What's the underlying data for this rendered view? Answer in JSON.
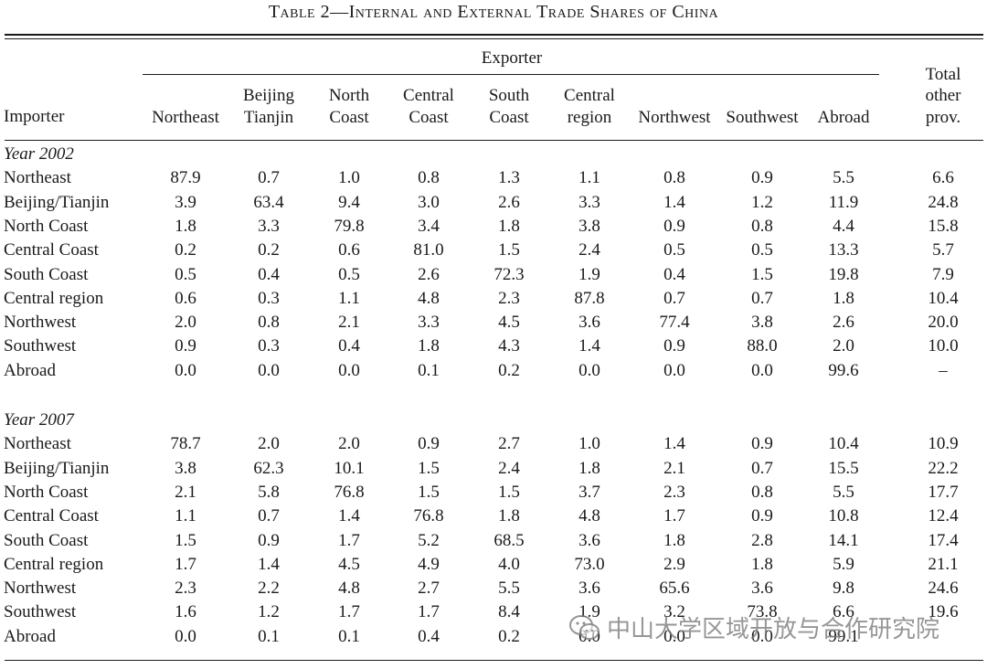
{
  "title": "Table 2—Internal and External Trade Shares of China",
  "header": {
    "importer": "Importer",
    "exporter": "Exporter",
    "columns": [
      [
        "Northeast"
      ],
      [
        "Beijing",
        "Tianjin"
      ],
      [
        "North",
        "Coast"
      ],
      [
        "Central",
        "Coast"
      ],
      [
        "South",
        "Coast"
      ],
      [
        "Central",
        "region"
      ],
      [
        "Northwest"
      ],
      [
        "Southwest"
      ],
      [
        "Abroad"
      ],
      [
        "Total",
        "other",
        "prov."
      ]
    ]
  },
  "panels": [
    {
      "label": "Year 2002",
      "rows": [
        {
          "name": "Northeast",
          "values": [
            "87.9",
            "0.7",
            "1.0",
            "0.8",
            "1.3",
            "1.1",
            "0.8",
            "0.9",
            "5.5",
            "6.6"
          ]
        },
        {
          "name": "Beijing/Tianjin",
          "values": [
            "3.9",
            "63.4",
            "9.4",
            "3.0",
            "2.6",
            "3.3",
            "1.4",
            "1.2",
            "11.9",
            "24.8"
          ]
        },
        {
          "name": "North Coast",
          "values": [
            "1.8",
            "3.3",
            "79.8",
            "3.4",
            "1.8",
            "3.8",
            "0.9",
            "0.8",
            "4.4",
            "15.8"
          ]
        },
        {
          "name": "Central Coast",
          "values": [
            "0.2",
            "0.2",
            "0.6",
            "81.0",
            "1.5",
            "2.4",
            "0.5",
            "0.5",
            "13.3",
            "5.7"
          ]
        },
        {
          "name": "South Coast",
          "values": [
            "0.5",
            "0.4",
            "0.5",
            "2.6",
            "72.3",
            "1.9",
            "0.4",
            "1.5",
            "19.8",
            "7.9"
          ]
        },
        {
          "name": "Central region",
          "values": [
            "0.6",
            "0.3",
            "1.1",
            "4.8",
            "2.3",
            "87.8",
            "0.7",
            "0.7",
            "1.8",
            "10.4"
          ]
        },
        {
          "name": "Northwest",
          "values": [
            "2.0",
            "0.8",
            "2.1",
            "3.3",
            "4.5",
            "3.6",
            "77.4",
            "3.8",
            "2.6",
            "20.0"
          ]
        },
        {
          "name": "Southwest",
          "values": [
            "0.9",
            "0.3",
            "0.4",
            "1.8",
            "4.3",
            "1.4",
            "0.9",
            "88.0",
            "2.0",
            "10.0"
          ]
        },
        {
          "name": "Abroad",
          "values": [
            "0.0",
            "0.0",
            "0.0",
            "0.1",
            "0.2",
            "0.0",
            "0.0",
            "0.0",
            "99.6",
            "–"
          ]
        }
      ]
    },
    {
      "label": "Year 2007",
      "rows": [
        {
          "name": "Northeast",
          "values": [
            "78.7",
            "2.0",
            "2.0",
            "0.9",
            "2.7",
            "1.0",
            "1.4",
            "0.9",
            "10.4",
            "10.9"
          ]
        },
        {
          "name": "Beijing/Tianjin",
          "values": [
            "3.8",
            "62.3",
            "10.1",
            "1.5",
            "2.4",
            "1.8",
            "2.1",
            "0.7",
            "15.5",
            "22.2"
          ]
        },
        {
          "name": "North Coast",
          "values": [
            "2.1",
            "5.8",
            "76.8",
            "1.5",
            "1.5",
            "3.7",
            "2.3",
            "0.8",
            "5.5",
            "17.7"
          ]
        },
        {
          "name": "Central Coast",
          "values": [
            "1.1",
            "0.7",
            "1.4",
            "76.8",
            "1.8",
            "4.8",
            "1.7",
            "0.9",
            "10.8",
            "12.4"
          ]
        },
        {
          "name": "South Coast",
          "values": [
            "1.5",
            "0.9",
            "1.7",
            "5.2",
            "68.5",
            "3.6",
            "1.8",
            "2.8",
            "14.1",
            "17.4"
          ]
        },
        {
          "name": "Central region",
          "values": [
            "1.7",
            "1.4",
            "4.5",
            "4.9",
            "4.0",
            "73.0",
            "2.9",
            "1.8",
            "5.9",
            "21.1"
          ]
        },
        {
          "name": "Northwest",
          "values": [
            "2.3",
            "2.2",
            "4.8",
            "2.7",
            "5.5",
            "3.6",
            "65.6",
            "3.6",
            "9.8",
            "24.6"
          ]
        },
        {
          "name": "Southwest",
          "values": [
            "1.6",
            "1.2",
            "1.7",
            "1.7",
            "8.4",
            "1.9",
            "3.2",
            "73.8",
            "6.6",
            "19.6"
          ]
        },
        {
          "name": "Abroad",
          "values": [
            "0.0",
            "0.1",
            "0.1",
            "0.4",
            "0.2",
            "0.0",
            "0.0",
            "0.0",
            "99.1",
            ""
          ]
        }
      ]
    }
  ],
  "watermark": "中山大学区域开放与合作研究院",
  "watermark_icon": "wechat-icon"
}
